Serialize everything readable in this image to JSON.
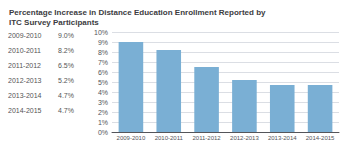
{
  "chart_data": {
    "type": "bar",
    "title": "Percentage Increase in Distance Education Enrollment Reported by\nITC Survey Participants",
    "categories": [
      "2009-2010",
      "2010-2011",
      "2011-2012",
      "2012-2013",
      "2013-2014",
      "2014-2015"
    ],
    "values": [
      9.0,
      8.2,
      6.5,
      5.2,
      4.7,
      4.7
    ],
    "color": "#7aafd4",
    "ylim": [
      0,
      10
    ],
    "yticks": [
      {
        "value": 0,
        "label": "0%"
      },
      {
        "value": 1,
        "label": "1%"
      },
      {
        "value": 2,
        "label": "2%"
      },
      {
        "value": 3,
        "label": "3%"
      },
      {
        "value": 4,
        "label": "4%"
      },
      {
        "value": 5,
        "label": "5%"
      },
      {
        "value": 6,
        "label": "6%"
      },
      {
        "value": 7,
        "label": "7%"
      },
      {
        "value": 8,
        "label": "8%"
      },
      {
        "value": 9,
        "label": "9%"
      },
      {
        "value": 10,
        "label": "10%"
      }
    ],
    "grid": true,
    "annotations": [
      [
        "2009-2010",
        "9.0%"
      ],
      [
        "2010-2011",
        "8.2%"
      ],
      [
        "2011-2012",
        "6.5%"
      ],
      [
        "2012-2013",
        "5.2%"
      ],
      [
        "2013-2014",
        "4.7%"
      ],
      [
        "2014-2015",
        "4.7%"
      ]
    ]
  }
}
